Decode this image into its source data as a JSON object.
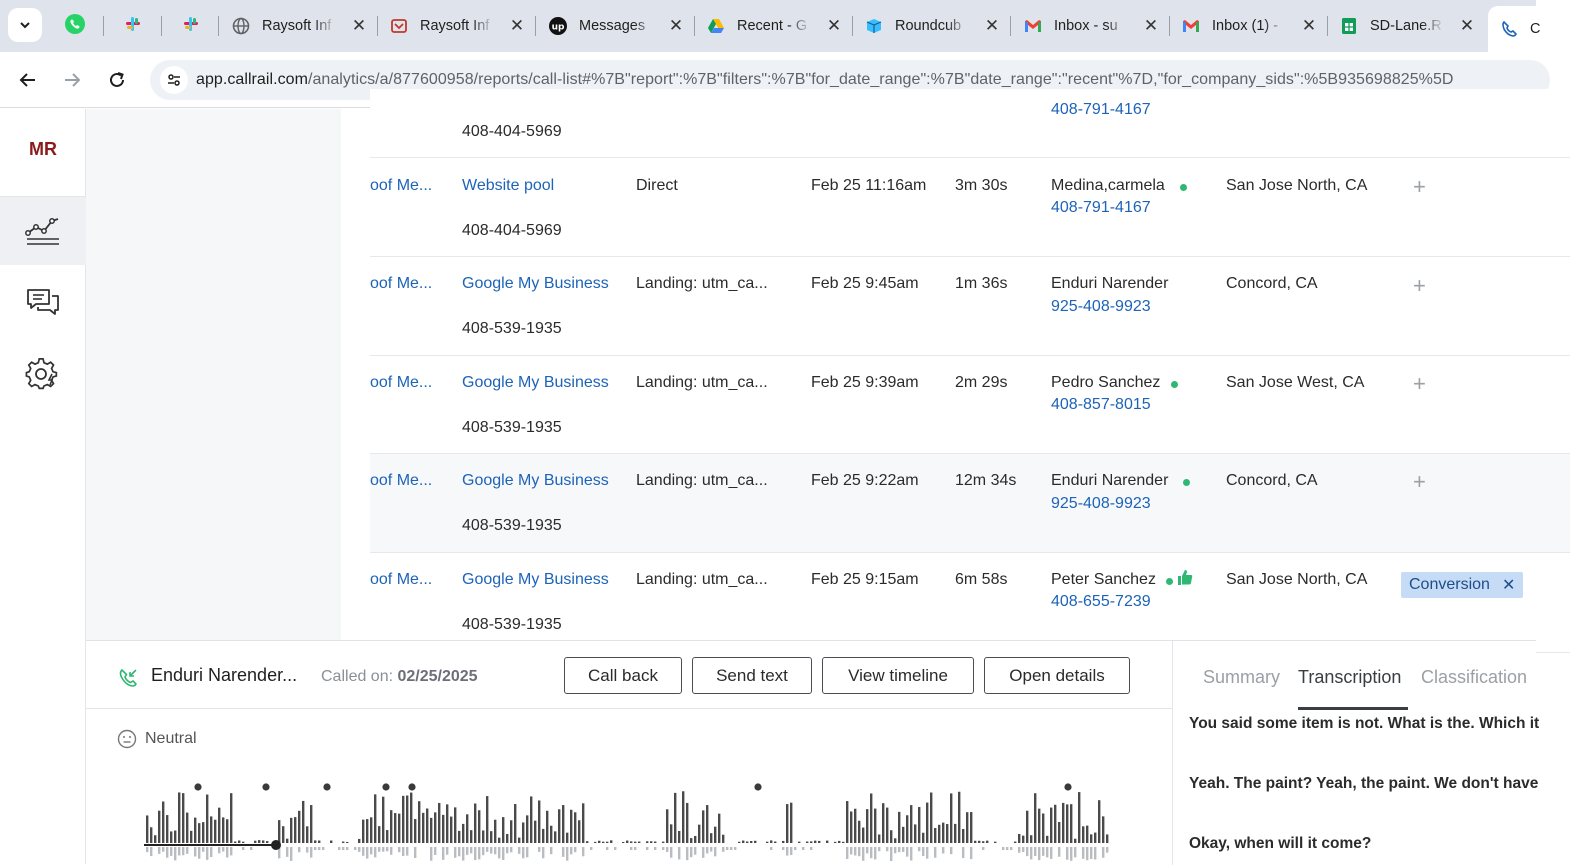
{
  "browser": {
    "tabs": [
      {
        "title": "Raysoft Inf",
        "icon": "globe-icon"
      },
      {
        "title": "Raysoft Inf",
        "icon": "raysoft-icon"
      },
      {
        "title": "Messages",
        "icon": "upwork-icon"
      },
      {
        "title": "Recent - G",
        "icon": "google-drive-icon"
      },
      {
        "title": "Roundcub",
        "icon": "roundcube-icon"
      },
      {
        "title": "Inbox - su",
        "icon": "gmail-icon"
      },
      {
        "title": "Inbox (1) -",
        "icon": "gmail-icon"
      },
      {
        "title": "SD-Lane.R",
        "icon": "google-sheets-icon"
      },
      {
        "title": "C",
        "icon": "callrail-icon"
      }
    ],
    "url_host": "app.callrail.com",
    "url_path": "/analytics/a/877600958/reports/call-list#%7B\"report\":%7B\"filters\":%7B\"for_date_range\":%7B\"date_range\":\"recent\"%7D,\"for_company_sids\":%5B935698825%5D"
  },
  "sidebar": {
    "logo": "MR",
    "items": [
      {
        "name": "analytics",
        "icon": "analytics-chart-icon",
        "active": true
      },
      {
        "name": "conversations",
        "icon": "chat-bubbles-icon",
        "active": false
      },
      {
        "name": "settings",
        "icon": "settings-gear-icon",
        "active": false
      }
    ]
  },
  "calls": {
    "partial_top": {
      "tracking_number": "408-404-5969",
      "customer_phone": "408-791-4167"
    },
    "rows": [
      {
        "company": "oof Me...",
        "source": "Website pool",
        "tracking_number": "408-404-5969",
        "medium": "Direct",
        "start_time": "Feb 25 11:16am",
        "duration": "3m 30s",
        "customer": "Medina,carmela",
        "customer_phone": "408-791-4167",
        "location": "San Jose North, CA",
        "tag": "",
        "status_dot": true
      },
      {
        "company": "oof Me...",
        "source": "Google My Business",
        "tracking_number": "408-539-1935",
        "medium": "Landing: utm_ca...",
        "start_time": "Feb 25 9:45am",
        "duration": "1m 36s",
        "customer": "Enduri Narender",
        "customer_phone": "925-408-9923",
        "location": "Concord, CA",
        "tag": "",
        "status_dot": false
      },
      {
        "company": "oof Me...",
        "source": "Google My Business",
        "tracking_number": "408-539-1935",
        "medium": "Landing: utm_ca...",
        "start_time": "Feb 25 9:39am",
        "duration": "2m 29s",
        "customer": "Pedro Sanchez",
        "customer_phone": "408-857-8015",
        "location": "San Jose West, CA",
        "tag": "",
        "status_dot": true
      },
      {
        "company": "oof Me...",
        "source": "Google My Business",
        "tracking_number": "408-539-1935",
        "medium": "Landing: utm_ca...",
        "start_time": "Feb 25 9:22am",
        "duration": "12m 34s",
        "customer": "Enduri Narender",
        "customer_phone": "925-408-9923",
        "location": "Concord, CA",
        "tag": "",
        "status_dot": true
      },
      {
        "company": "oof Me...",
        "source": "Google My Business",
        "tracking_number": "408-539-1935",
        "medium": "Landing: utm_ca...",
        "start_time": "Feb 25 9:15am",
        "duration": "6m 58s",
        "customer": "Peter Sanchez",
        "customer_phone": "408-655-7239",
        "location": "San Jose North, CA",
        "tag": "Conversion",
        "status_dot": true
      }
    ]
  },
  "call_panel": {
    "caller": "Enduri Narender...",
    "called_label": "Called on:",
    "called_date": "02/25/2025",
    "buttons": {
      "call_back": "Call back",
      "send_text": "Send text",
      "view_timeline": "View timeline",
      "open_details": "Open details"
    },
    "sentiment": "Neutral",
    "tabs": [
      "Summary",
      "Transcription",
      "Classification"
    ],
    "active_tab": "Transcription",
    "transcript": [
      "You said some item is not. What is the. Which it",
      "Yeah. The paint? Yeah, the paint. We don't have",
      "Okay, when will it come?"
    ]
  },
  "colors": {
    "link": "#1d63b8",
    "logo": "#8c1a1a",
    "status_green": "#2eb872",
    "tag_bg": "#c6dcf6"
  }
}
